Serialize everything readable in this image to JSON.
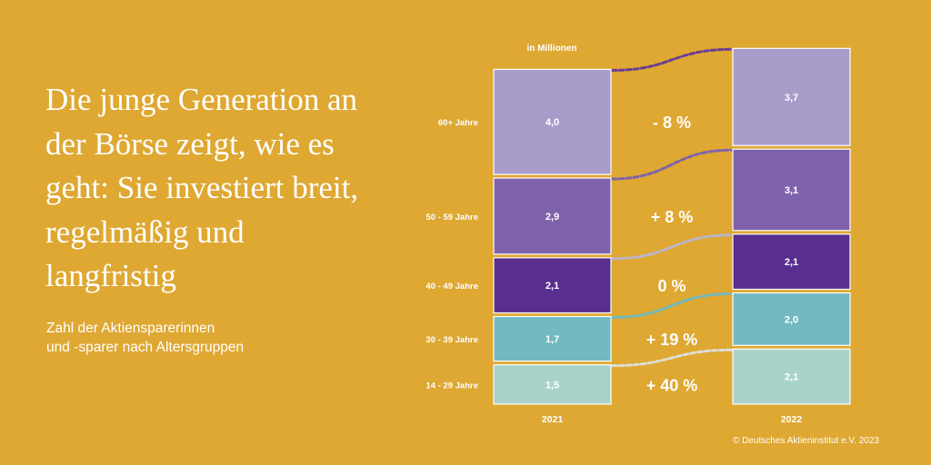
{
  "headline": "Die junge Generation an der Börse zeigt, wie es geht: Sie investiert breit, regelmäßig und langfristig",
  "subtitle_line1": "Zahl der Aktiensparerinnen",
  "subtitle_line2": "und -sparer nach Altersgruppen",
  "credit": "© Deutsches Aktieninstitut e.V. 2023",
  "chart_data": {
    "type": "bar",
    "stacked": true,
    "unit_label": "in Millionen",
    "categories": [
      "2021",
      "2022"
    ],
    "series": [
      {
        "name": "60+ Jahre",
        "values": [
          4.0,
          3.7
        ],
        "labels": [
          "4,0",
          "3,7"
        ],
        "change": "- 8 %",
        "color": "#a99ccb"
      },
      {
        "name": "50 - 59 Jahre",
        "values": [
          2.9,
          3.1
        ],
        "labels": [
          "2,9",
          "3,1"
        ],
        "change": "+ 8 %",
        "color": "#7f62ac"
      },
      {
        "name": "40 - 49 Jahre",
        "values": [
          2.1,
          2.1
        ],
        "labels": [
          "2,1",
          "2,1"
        ],
        "change": "0 %",
        "color": "#582e8f"
      },
      {
        "name": "30 - 39 Jahre",
        "values": [
          1.7,
          2.0
        ],
        "labels": [
          "1,7",
          "2,0"
        ],
        "change": "+ 19 %",
        "color": "#72b9c2"
      },
      {
        "name": "14 - 29 Jahre",
        "values": [
          1.5,
          2.1
        ],
        "labels": [
          "1,5",
          "2,1"
        ],
        "change": "+ 40 %",
        "color": "#a9d3c9"
      }
    ],
    "connector_colors": [
      "#6b3d94",
      "#7f62ac",
      "#b9b6cf",
      "#6fb9c2",
      "#ddded6"
    ]
  }
}
